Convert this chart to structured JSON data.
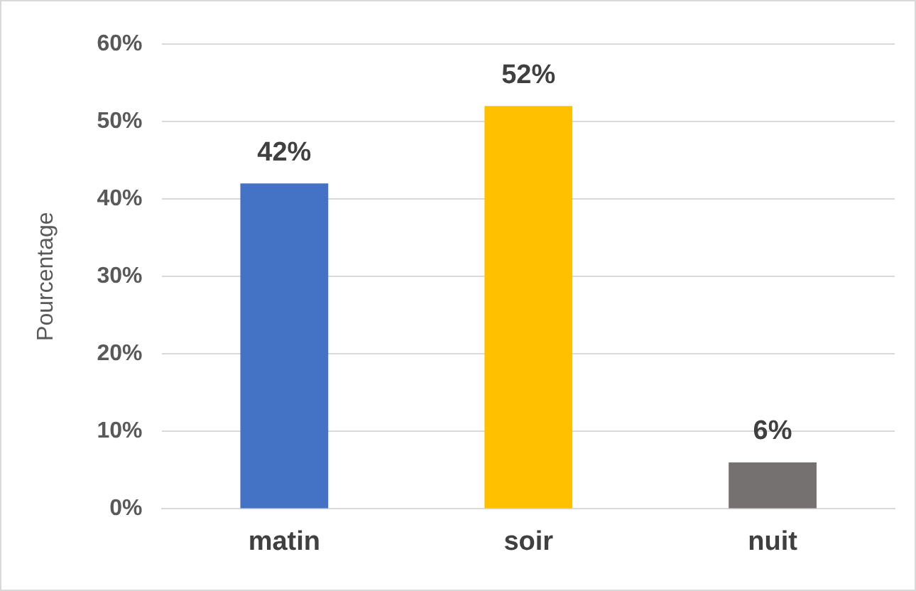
{
  "chart_data": {
    "type": "bar",
    "ylabel": "Pourcentage",
    "categories": [
      "matin",
      "soir",
      "nuit"
    ],
    "values": [
      42,
      52,
      6
    ],
    "colors": [
      "#4472c4",
      "#ffc000",
      "#767171"
    ],
    "value_labels": [
      "42%",
      "52%",
      "6%"
    ],
    "ylim": [
      0,
      60
    ],
    "yticks": [
      {
        "value": 0,
        "label": "0%"
      },
      {
        "value": 10,
        "label": "10%"
      },
      {
        "value": 20,
        "label": "20%"
      },
      {
        "value": 30,
        "label": "30%"
      },
      {
        "value": 40,
        "label": "40%"
      },
      {
        "value": 50,
        "label": "50%"
      },
      {
        "value": 60,
        "label": "60%"
      }
    ],
    "grid": "y",
    "legend": false
  }
}
